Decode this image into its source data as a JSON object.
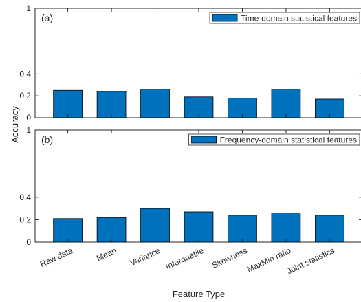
{
  "chart_data": [
    {
      "type": "bar",
      "panel_label": "(a)",
      "categories": [
        "Raw data",
        "Mean",
        "Variance",
        "Interquatile",
        "Skewness",
        "MaxMin ratio",
        "Joint statistics"
      ],
      "series": [
        {
          "name": "Time-domain statistical features",
          "values": [
            0.25,
            0.24,
            0.26,
            0.19,
            0.18,
            0.26,
            0.17
          ],
          "color": "#0072BD"
        }
      ],
      "ylim": [
        0,
        1
      ],
      "yticks": [
        "0",
        "0.2",
        "0.4",
        "1"
      ],
      "legend_position": "top-right",
      "grid": false
    },
    {
      "type": "bar",
      "panel_label": "(b)",
      "categories": [
        "Raw data",
        "Mean",
        "Variance",
        "Interquatile",
        "Skewness",
        "MaxMin ratio",
        "Joint statistics"
      ],
      "series": [
        {
          "name": "Frequency-domain statistical features",
          "values": [
            0.21,
            0.22,
            0.3,
            0.27,
            0.24,
            0.26,
            0.24
          ],
          "color": "#0072BD"
        }
      ],
      "ylim": [
        0,
        1
      ],
      "yticks": [
        "0",
        "0.2",
        "0.4",
        "1"
      ],
      "legend_position": "top-right",
      "grid": false
    }
  ],
  "labels": {
    "ylabel": "Accuracy",
    "xlabel": "Feature Type"
  },
  "colors": {
    "bar_fill": "#0072BD",
    "bar_edge": "#000000",
    "axis": "#262626"
  }
}
